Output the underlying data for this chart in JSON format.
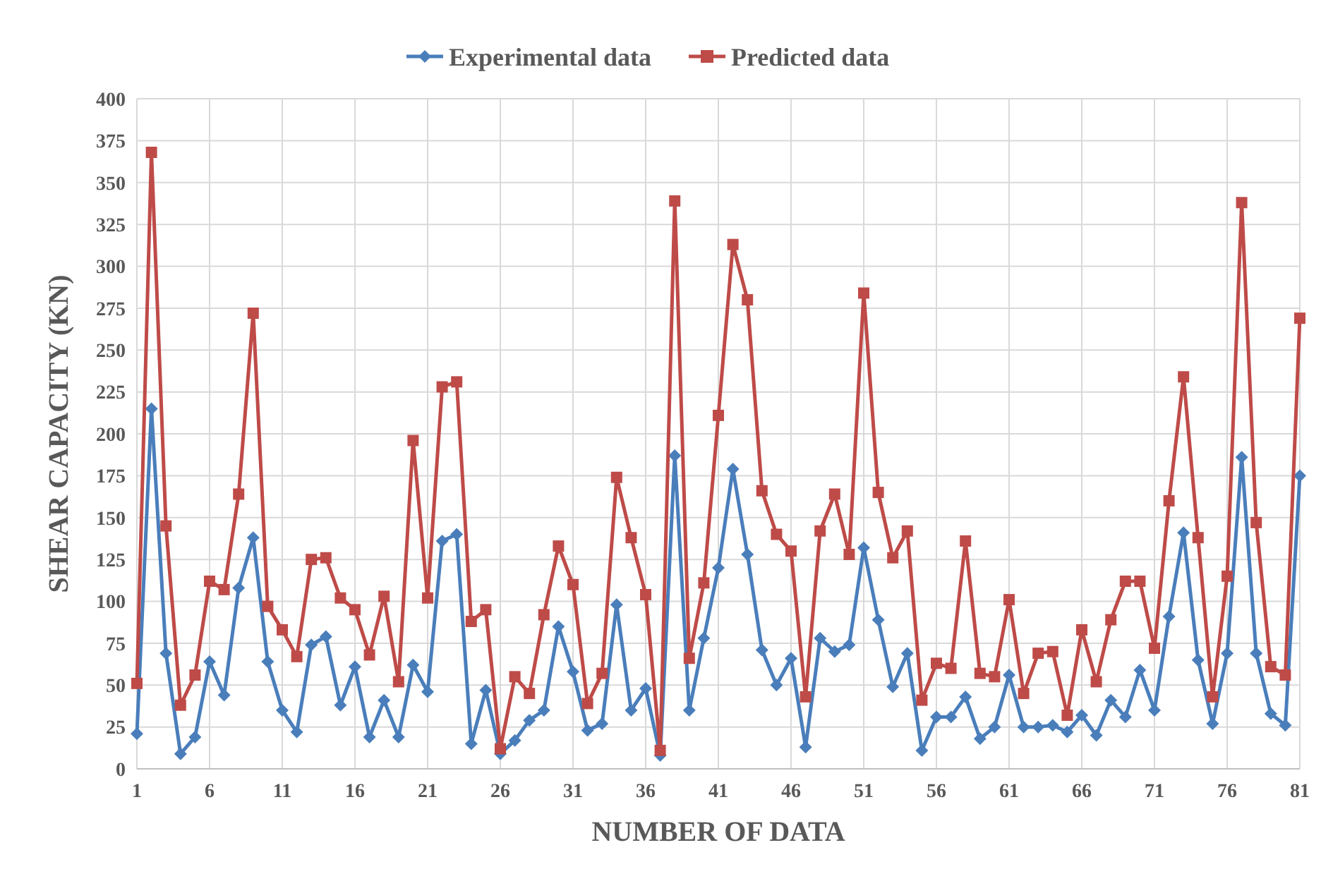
{
  "chart_data": {
    "type": "line",
    "xlabel": "NUMBER OF DATA",
    "ylabel": "SHEAR CAPACITY (KN)",
    "x": [
      1,
      2,
      3,
      4,
      5,
      6,
      7,
      8,
      9,
      10,
      11,
      12,
      13,
      14,
      15,
      16,
      17,
      18,
      19,
      20,
      21,
      22,
      23,
      24,
      25,
      26,
      27,
      28,
      29,
      30,
      31,
      32,
      33,
      34,
      35,
      36,
      37,
      38,
      39,
      40,
      41,
      42,
      43,
      44,
      45,
      46,
      47,
      48,
      49,
      50,
      51,
      52,
      53,
      54,
      55,
      56,
      57,
      58,
      59,
      60,
      61,
      62,
      63,
      64,
      65,
      66,
      67,
      68,
      69,
      70,
      71,
      72,
      73,
      74,
      75,
      76,
      77,
      78,
      79,
      80,
      81
    ],
    "xlim": [
      1,
      81
    ],
    "xticks": [
      1,
      6,
      11,
      16,
      21,
      26,
      31,
      36,
      41,
      46,
      51,
      56,
      61,
      66,
      71,
      76,
      81
    ],
    "ylim": [
      0,
      400
    ],
    "yticks": [
      0,
      25,
      50,
      75,
      100,
      125,
      150,
      175,
      200,
      225,
      250,
      275,
      300,
      325,
      350,
      375,
      400
    ],
    "grid": true,
    "legend": "top",
    "line_style": "solid",
    "series": [
      {
        "name": "Experimental data",
        "color": "#4a7ebb",
        "marker": "diamond",
        "values": [
          21,
          215,
          69,
          9,
          19,
          64,
          44,
          108,
          138,
          64,
          35,
          22,
          74,
          79,
          38,
          61,
          19,
          41,
          19,
          62,
          46,
          136,
          140,
          15,
          47,
          9,
          17,
          29,
          35,
          85,
          58,
          23,
          27,
          98,
          35,
          48,
          8,
          187,
          35,
          78,
          120,
          179,
          128,
          71,
          50,
          66,
          13,
          78,
          70,
          74,
          132,
          89,
          49,
          69,
          11,
          31,
          31,
          43,
          18,
          25,
          56,
          25,
          25,
          26,
          22,
          32,
          20,
          41,
          31,
          59,
          35,
          91,
          141,
          65,
          27,
          69,
          186,
          69,
          33,
          26,
          175
        ]
      },
      {
        "name": "Predicted data",
        "color": "#be4b48",
        "marker": "square",
        "values": [
          51,
          368,
          145,
          38,
          56,
          112,
          107,
          164,
          272,
          97,
          83,
          67,
          125,
          126,
          102,
          95,
          68,
          103,
          52,
          196,
          102,
          228,
          231,
          88,
          95,
          12,
          55,
          45,
          92,
          133,
          110,
          39,
          57,
          174,
          138,
          104,
          11,
          339,
          66,
          111,
          211,
          313,
          280,
          166,
          140,
          130,
          43,
          142,
          164,
          128,
          284,
          165,
          126,
          142,
          41,
          63,
          60,
          136,
          57,
          55,
          101,
          45,
          69,
          70,
          32,
          83,
          52,
          89,
          112,
          112,
          72,
          160,
          234,
          138,
          43,
          115,
          338,
          147,
          61,
          56,
          269
        ]
      }
    ]
  }
}
